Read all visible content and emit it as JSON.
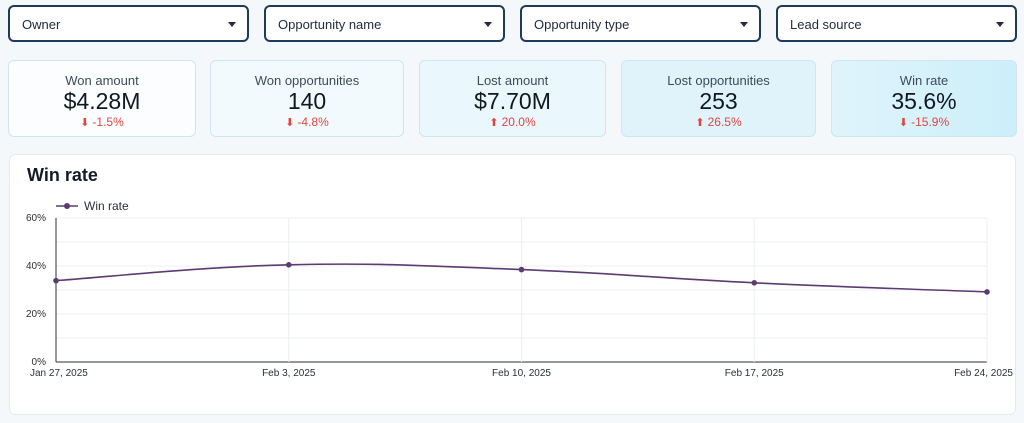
{
  "filters": [
    {
      "label": "Owner"
    },
    {
      "label": "Opportunity name"
    },
    {
      "label": "Opportunity type"
    },
    {
      "label": "Lead source"
    }
  ],
  "kpis": [
    {
      "label": "Won amount",
      "value": "$4.28M",
      "delta": "-1.5%",
      "direction": "down"
    },
    {
      "label": "Won opportunities",
      "value": "140",
      "delta": "-4.8%",
      "direction": "down"
    },
    {
      "label": "Lost amount",
      "value": "$7.70M",
      "delta": "20.0%",
      "direction": "up"
    },
    {
      "label": "Lost opportunities",
      "value": "253",
      "delta": "26.5%",
      "direction": "up"
    },
    {
      "label": "Win rate",
      "value": "35.6%",
      "delta": "-15.9%",
      "direction": "down"
    }
  ],
  "colors": {
    "line": "#5c3b72",
    "negative_delta": "#e0463d",
    "filter_border": "#1f3b5c"
  },
  "chart_data": {
    "type": "line",
    "title": "Win rate",
    "x": [
      "Jan 27, 2025",
      "Feb 3, 2025",
      "Feb 10, 2025",
      "Feb 17, 2025",
      "Feb 24, 2025"
    ],
    "series": [
      {
        "name": "Win rate",
        "values": [
          33.9,
          40.5,
          38.5,
          33.0,
          29.2
        ]
      }
    ],
    "y_ticks": [
      "0%",
      "20%",
      "40%",
      "60%"
    ],
    "ylim": [
      0,
      60
    ],
    "y_unit": "%",
    "grid": true,
    "legend": "top-left",
    "smooth": true
  }
}
